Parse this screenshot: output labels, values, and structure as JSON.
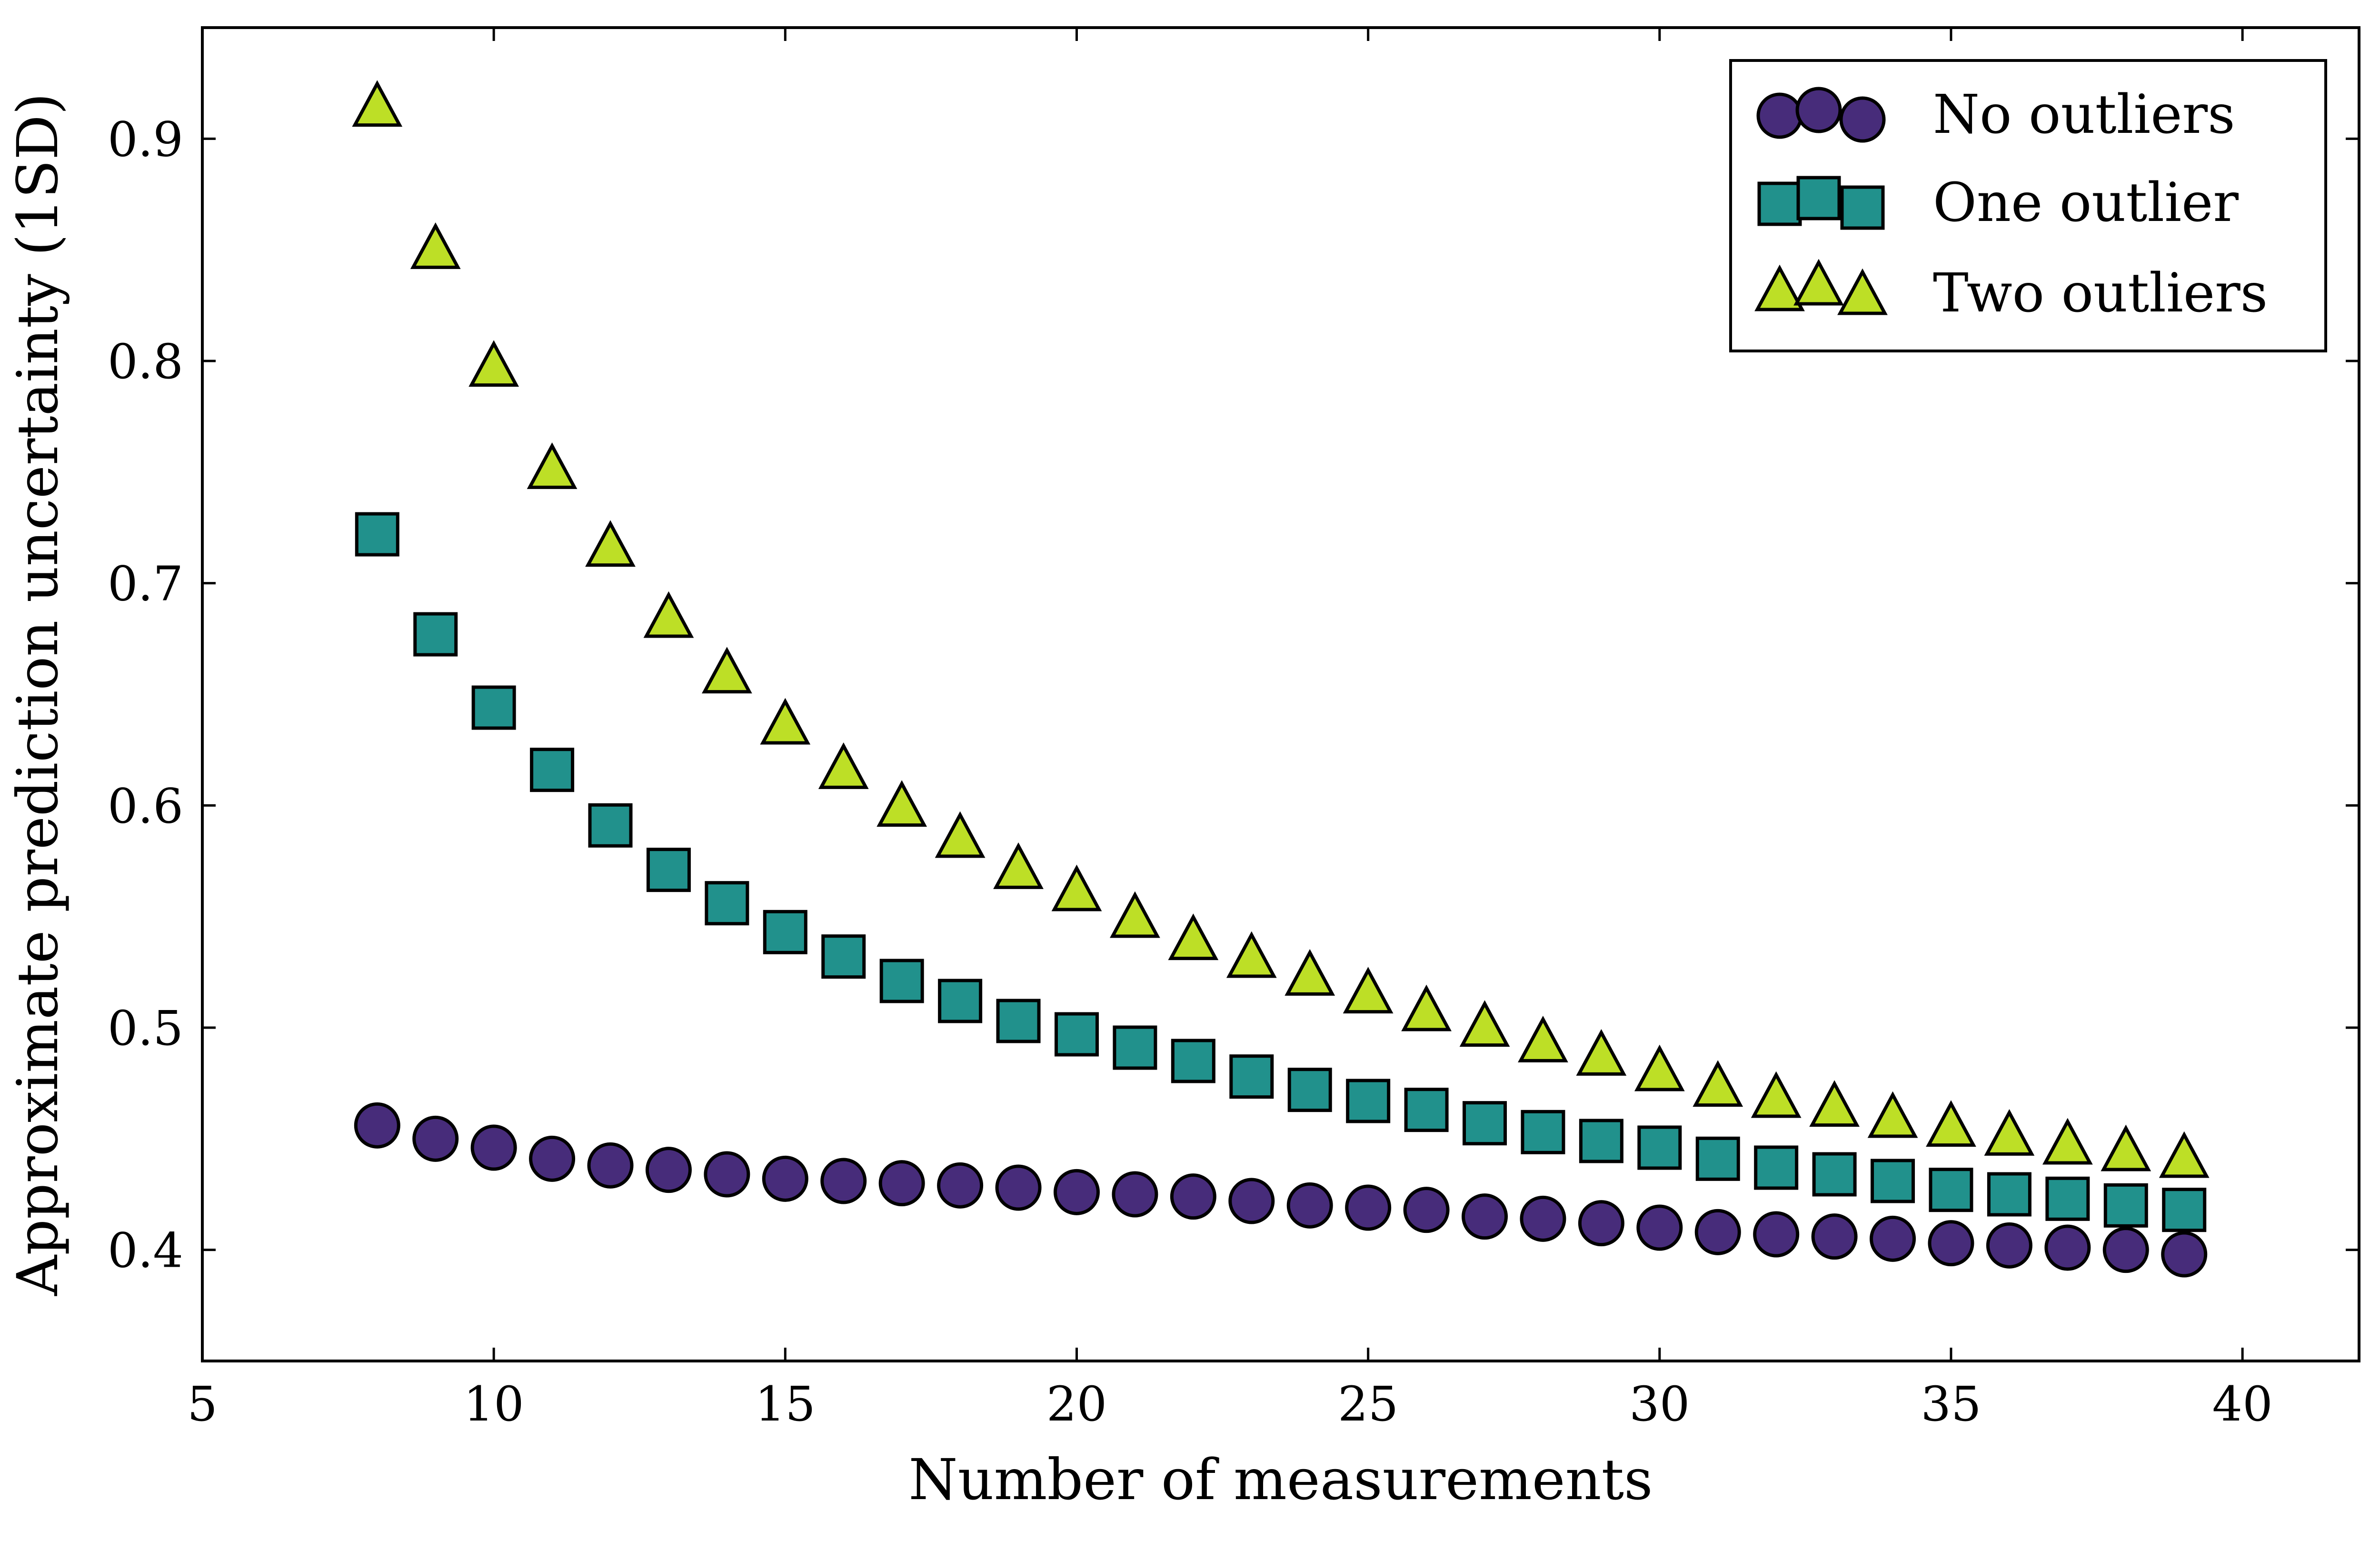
{
  "chart_data": {
    "type": "scatter",
    "title": "",
    "xlabel": "Number of measurements",
    "ylabel": "Approximate prediction uncertainty (1SD)",
    "xlim": [
      5,
      42
    ],
    "ylim": [
      0.35,
      0.95
    ],
    "xticks": [
      5,
      10,
      15,
      20,
      25,
      30,
      35,
      40
    ],
    "xtick_labels": [
      "5",
      "10",
      "15",
      "20",
      "25",
      "30",
      "35",
      "40"
    ],
    "yticks": [
      0.4,
      0.5,
      0.6,
      0.7,
      0.8,
      0.9
    ],
    "ytick_labels": [
      "0.4",
      "0.5",
      "0.6",
      "0.7",
      "0.8",
      "0.9"
    ],
    "grid": false,
    "legend_position": "top-right",
    "x": [
      8,
      9,
      10,
      11,
      12,
      13,
      14,
      15,
      16,
      17,
      18,
      19,
      20,
      21,
      22,
      23,
      24,
      25,
      26,
      27,
      28,
      29,
      30,
      31,
      32,
      33,
      34,
      35,
      36,
      37,
      38,
      39
    ],
    "series": [
      {
        "name": "No outliers",
        "marker": "circle",
        "color": "#472c7a",
        "values": [
          0.456,
          0.45,
          0.446,
          0.441,
          0.438,
          0.436,
          0.434,
          0.432,
          0.431,
          0.43,
          0.429,
          0.428,
          0.426,
          0.425,
          0.424,
          0.422,
          0.42,
          0.419,
          0.418,
          0.415,
          0.414,
          0.412,
          0.41,
          0.408,
          0.407,
          0.406,
          0.405,
          0.403,
          0.402,
          0.401,
          0.4,
          0.398
        ]
      },
      {
        "name": "One outlier",
        "marker": "square",
        "color": "#21918c",
        "values": [
          0.722,
          0.677,
          0.644,
          0.616,
          0.591,
          0.571,
          0.556,
          0.543,
          0.532,
          0.521,
          0.512,
          0.503,
          0.497,
          0.491,
          0.485,
          0.478,
          0.472,
          0.467,
          0.463,
          0.457,
          0.453,
          0.449,
          0.446,
          0.441,
          0.437,
          0.434,
          0.431,
          0.427,
          0.425,
          0.423,
          0.42,
          0.418
        ]
      },
      {
        "name": "Two outliers",
        "marker": "triangle",
        "color": "#bddf26",
        "values": [
          0.913,
          0.849,
          0.796,
          0.75,
          0.715,
          0.683,
          0.658,
          0.635,
          0.615,
          0.598,
          0.584,
          0.57,
          0.56,
          0.548,
          0.538,
          0.53,
          0.522,
          0.514,
          0.506,
          0.499,
          0.492,
          0.486,
          0.479,
          0.472,
          0.467,
          0.463,
          0.458,
          0.454,
          0.45,
          0.446,
          0.443,
          0.44
        ]
      }
    ]
  }
}
